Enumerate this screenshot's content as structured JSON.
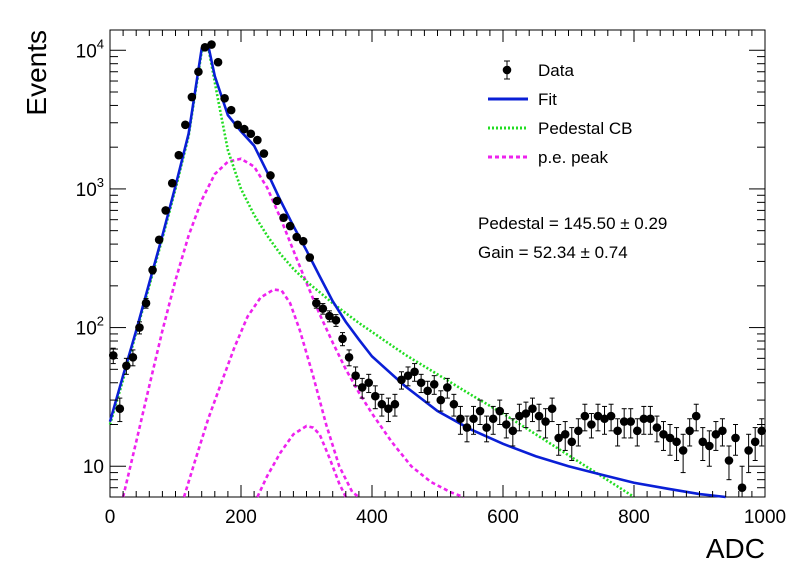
{
  "chart_data": {
    "type": "scatter",
    "xlabel": "ADC",
    "ylabel": "Events",
    "xlim": [
      0,
      1000
    ],
    "ylim": [
      6,
      14000
    ],
    "yscale": "log",
    "grid": false,
    "legend_position": "top-right",
    "x_ticks": [
      {
        "value": 0,
        "label": "0"
      },
      {
        "value": 200,
        "label": "200"
      },
      {
        "value": 400,
        "label": "400"
      },
      {
        "value": 600,
        "label": "600"
      },
      {
        "value": 800,
        "label": "800"
      },
      {
        "value": 1000,
        "label": "1000"
      }
    ],
    "y_ticks": [
      {
        "value": 10,
        "base": "10",
        "exp": ""
      },
      {
        "value": 100,
        "base": "10",
        "exp": "2"
      },
      {
        "value": 1000,
        "base": "10",
        "exp": "3"
      },
      {
        "value": 10000,
        "base": "10",
        "exp": "4"
      }
    ],
    "legend": [
      {
        "key": "data",
        "label": "Data",
        "color": "#000000",
        "style": "marker"
      },
      {
        "key": "fit",
        "label": "Fit",
        "color": "#0a1fd6",
        "style": "solid"
      },
      {
        "key": "pedestal",
        "label": "Pedestal CB",
        "color": "#22dd22",
        "style": "dotted"
      },
      {
        "key": "pe",
        "label": "p.e. peak",
        "color": "#ee22ee",
        "style": "dashed"
      }
    ],
    "annotations": {
      "pedestal": "Pedestal = 145.50 ± 0.29",
      "gain": "Gain = 52.34 ± 0.74"
    },
    "data": {
      "x": [
        5,
        15,
        25,
        35,
        45,
        55,
        65,
        75,
        85,
        95,
        105,
        115,
        125,
        135,
        145,
        155,
        165,
        175,
        185,
        195,
        205,
        215,
        225,
        235,
        245,
        255,
        265,
        275,
        285,
        295,
        305,
        315,
        325,
        335,
        345,
        355,
        365,
        375,
        385,
        395,
        405,
        415,
        425,
        435,
        445,
        455,
        465,
        475,
        485,
        495,
        505,
        515,
        525,
        535,
        545,
        555,
        565,
        575,
        585,
        595,
        605,
        615,
        625,
        635,
        645,
        655,
        665,
        675,
        685,
        695,
        705,
        715,
        725,
        735,
        745,
        755,
        765,
        775,
        785,
        795,
        805,
        815,
        825,
        835,
        845,
        855,
        865,
        875,
        885,
        895,
        905,
        915,
        925,
        935,
        945,
        955,
        965,
        975,
        985,
        995
      ],
      "y": [
        63,
        26,
        53,
        61,
        100,
        150,
        260,
        430,
        700,
        1100,
        1750,
        2900,
        4600,
        7000,
        10500,
        11000,
        8200,
        4500,
        3700,
        2900,
        2700,
        2500,
        2250,
        1800,
        1250,
        820,
        620,
        540,
        450,
        420,
        320,
        150,
        137,
        121,
        113,
        83,
        61,
        45,
        37,
        40,
        32,
        28,
        26,
        28,
        42,
        45,
        48,
        40,
        35,
        39,
        30,
        37,
        28,
        22,
        19,
        22,
        25,
        19,
        22,
        25,
        20,
        18,
        23,
        24,
        26,
        23,
        21,
        26,
        16,
        17,
        15,
        18,
        23,
        20,
        23,
        22,
        23,
        18,
        21,
        21,
        18,
        22,
        22,
        19,
        17,
        16,
        15,
        13,
        18,
        23,
        15,
        14,
        17,
        18,
        11,
        16,
        7,
        13,
        15,
        18
      ],
      "err": [
        8,
        5,
        7,
        8,
        10,
        12,
        16,
        21,
        26,
        33,
        42,
        54,
        68,
        84,
        102,
        105,
        91,
        67,
        61,
        54,
        52,
        50,
        47,
        42,
        35,
        29,
        25,
        23,
        21,
        20,
        18,
        12,
        12,
        11,
        11,
        9,
        8,
        7,
        6,
        6,
        6,
        5,
        5,
        5,
        6,
        7,
        7,
        6,
        6,
        6,
        5,
        6,
        5,
        5,
        4,
        5,
        5,
        4,
        5,
        5,
        4,
        4,
        5,
        5,
        5,
        5,
        5,
        5,
        4,
        4,
        4,
        4,
        5,
        4,
        5,
        5,
        5,
        4,
        5,
        5,
        4,
        5,
        5,
        4,
        4,
        4,
        4,
        4,
        4,
        5,
        4,
        4,
        4,
        4,
        3,
        4,
        3,
        4,
        4,
        4
      ]
    },
    "fit": {
      "x": [
        0,
        20,
        40,
        60,
        80,
        100,
        120,
        140,
        150,
        160,
        180,
        200,
        220,
        240,
        260,
        280,
        300,
        320,
        340,
        360,
        380,
        400,
        450,
        500,
        550,
        600,
        650,
        700,
        750,
        800,
        850,
        900,
        940
      ],
      "y": [
        21,
        45,
        95,
        210,
        460,
        1050,
        2500,
        10300,
        10800,
        6500,
        3400,
        2600,
        2050,
        1320,
        830,
        540,
        360,
        235,
        155,
        110,
        82,
        62,
        38,
        25,
        18.5,
        14.5,
        11.8,
        10,
        8.7,
        7.6,
        6.9,
        6.3,
        6
      ]
    },
    "pedestal": {
      "x": [
        0,
        20,
        40,
        60,
        80,
        100,
        120,
        140,
        150,
        165,
        180,
        200,
        220,
        240,
        260,
        280,
        300,
        320,
        340,
        360,
        380,
        400,
        450,
        500,
        550,
        600,
        650,
        700,
        750,
        800
      ],
      "y": [
        20,
        42,
        92,
        200,
        440,
        1000,
        2400,
        9800,
        10500,
        4400,
        1900,
        1000,
        650,
        460,
        340,
        265,
        215,
        180,
        150,
        127,
        108,
        93,
        64,
        46,
        33,
        24,
        17,
        12,
        8.5,
        6
      ]
    },
    "pe_peaks": [
      {
        "x": [
          20,
          40,
          60,
          80,
          100,
          120,
          140,
          160,
          180,
          200,
          220,
          240,
          260,
          280,
          300,
          320,
          340,
          360,
          380,
          400,
          430,
          460,
          490,
          520,
          540
        ],
        "y": [
          6,
          15,
          38,
          95,
          220,
          460,
          830,
          1280,
          1570,
          1650,
          1450,
          1020,
          620,
          360,
          210,
          125,
          78,
          50,
          34,
          24,
          15,
          10,
          7.7,
          6.5,
          6
        ]
      },
      {
        "x": [
          113,
          130,
          150,
          170,
          190,
          210,
          230,
          250,
          262,
          275,
          290,
          310,
          330,
          350,
          370,
          380
        ],
        "y": [
          6,
          11,
          22,
          40,
          72,
          120,
          165,
          188,
          185,
          150,
          95,
          45,
          20,
          10,
          6.5,
          6
        ]
      },
      {
        "x": [
          225,
          240,
          260,
          280,
          300,
          310,
          320,
          335,
          350,
          360
        ],
        "y": [
          6,
          8.5,
          12.5,
          17,
          19.5,
          19,
          17,
          11.5,
          7.5,
          6
        ]
      }
    ]
  }
}
